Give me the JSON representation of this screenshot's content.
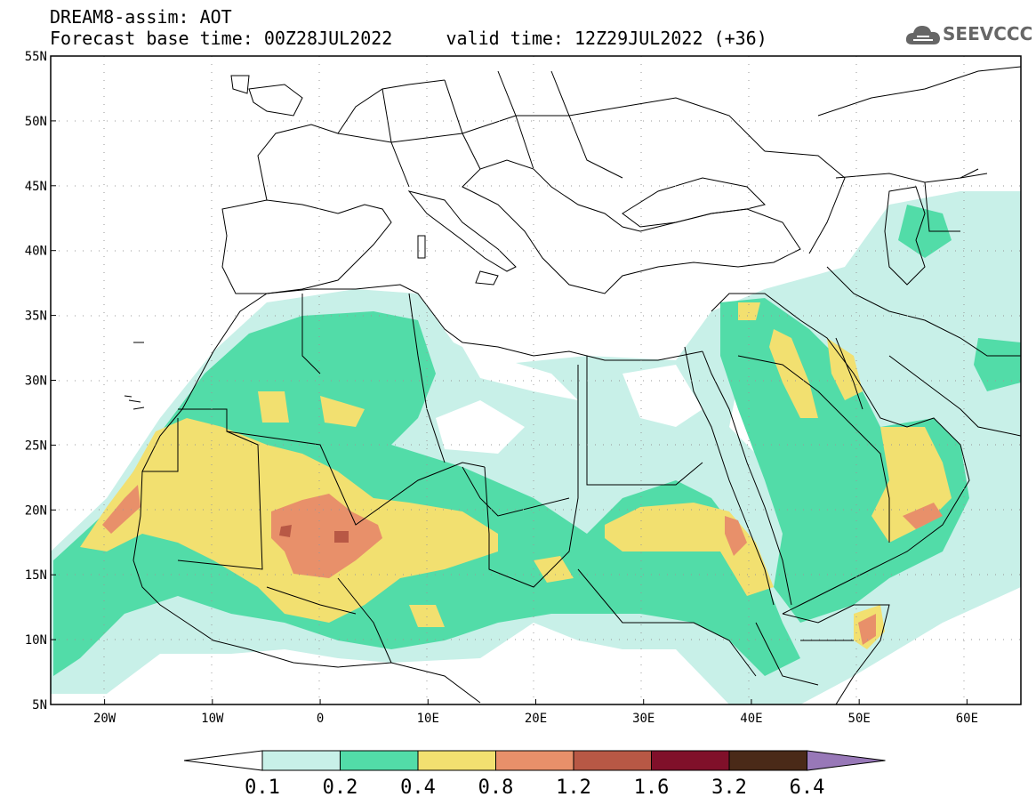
{
  "title": {
    "line1": "DREAM8-assim: AOT",
    "line2": "Forecast base time: 00Z28JUL2022     valid time: 12Z29JUL2022 (+36)"
  },
  "logo": {
    "text": "SEEVCCC",
    "icon": "cloud-icon",
    "color": "#666666"
  },
  "map": {
    "lon_range": [
      -25,
      65
    ],
    "lat_range": [
      5,
      55
    ],
    "lat_ticks": [
      {
        "value": 55,
        "label": "55N"
      },
      {
        "value": 50,
        "label": "50N"
      },
      {
        "value": 45,
        "label": "45N"
      },
      {
        "value": 40,
        "label": "40N"
      },
      {
        "value": 35,
        "label": "35N"
      },
      {
        "value": 30,
        "label": "30N"
      },
      {
        "value": 25,
        "label": "25N"
      },
      {
        "value": 20,
        "label": "20N"
      },
      {
        "value": 15,
        "label": "15N"
      },
      {
        "value": 10,
        "label": "10N"
      },
      {
        "value": 5,
        "label": "5N"
      }
    ],
    "lon_ticks": [
      {
        "value": -20,
        "label": "20W"
      },
      {
        "value": -10,
        "label": "10W"
      },
      {
        "value": 0,
        "label": "0"
      },
      {
        "value": 10,
        "label": "10E"
      },
      {
        "value": 20,
        "label": "20E"
      },
      {
        "value": 30,
        "label": "30E"
      },
      {
        "value": 40,
        "label": "40E"
      },
      {
        "value": 50,
        "label": "50E"
      },
      {
        "value": 60,
        "label": "60E"
      }
    ],
    "grid": "dotted"
  },
  "colorbar": {
    "levels": [
      "0.1",
      "0.2",
      "0.4",
      "0.8",
      "1.2",
      "1.6",
      "3.2",
      "6.4"
    ],
    "colors": [
      "#c8f0e8",
      "#52dca8",
      "#f2e070",
      "#e8906a",
      "#b85845",
      "#80102a",
      "#4a2a18",
      "#9878b8"
    ]
  }
}
